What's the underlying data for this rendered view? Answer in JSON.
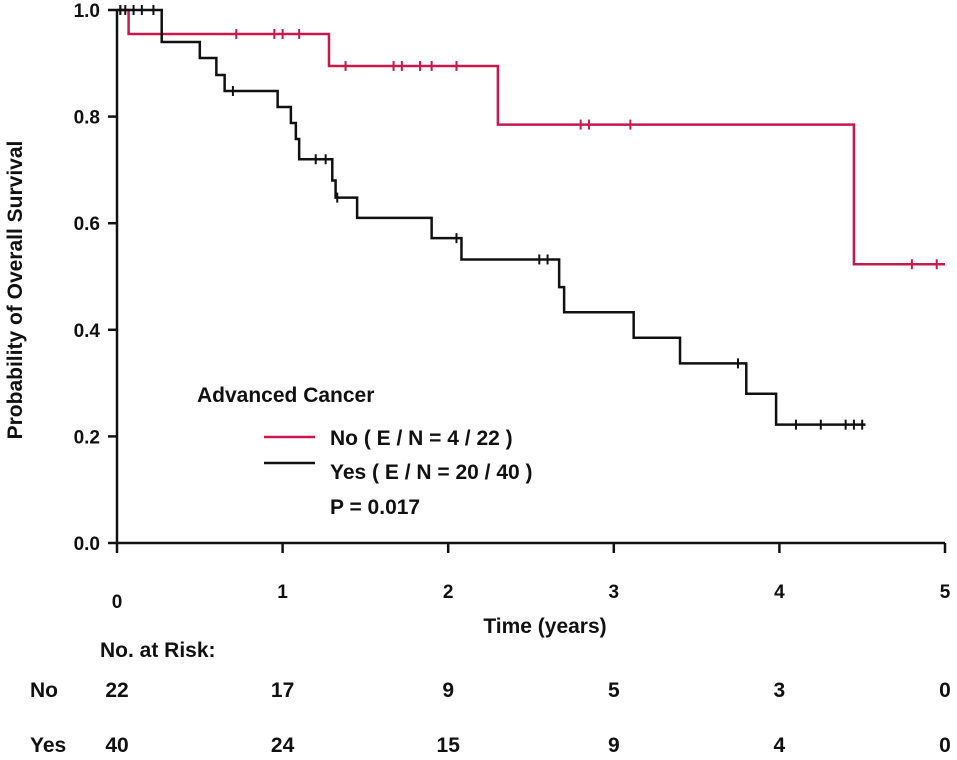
{
  "chart_data": {
    "type": "line",
    "subtype": "kaplan-meier",
    "xlabel": "Time (years)",
    "ylabel": "Probability of Overall Survival",
    "xlim": [
      0,
      5
    ],
    "ylim": [
      0,
      1.0
    ],
    "x_ticks": [
      "0",
      "1",
      "2",
      "3",
      "4",
      "5"
    ],
    "y_ticks": [
      "0.0",
      "0.2",
      "0.4",
      "0.6",
      "0.8",
      "1.0"
    ],
    "legend": {
      "title": "Advanced Cancer",
      "placement": "center-left",
      "p_value": "P = 0.017"
    },
    "series": [
      {
        "name": "No",
        "label": "No ( E / N = 4 / 22 )",
        "color": "#c8194f",
        "steps": [
          [
            0,
            1.0
          ],
          [
            0.07,
            0.955
          ],
          [
            1.28,
            0.895
          ],
          [
            2.3,
            0.785
          ],
          [
            4.45,
            0.523
          ],
          [
            5.0,
            0.523
          ]
        ],
        "censors": [
          [
            0.02,
            1.0
          ],
          [
            0.72,
            0.955
          ],
          [
            0.95,
            0.955
          ],
          [
            1.0,
            0.955
          ],
          [
            1.1,
            0.955
          ],
          [
            1.38,
            0.895
          ],
          [
            1.67,
            0.895
          ],
          [
            1.72,
            0.895
          ],
          [
            1.83,
            0.895
          ],
          [
            1.9,
            0.895
          ],
          [
            2.05,
            0.895
          ],
          [
            2.8,
            0.785
          ],
          [
            2.85,
            0.785
          ],
          [
            3.1,
            0.785
          ],
          [
            4.8,
            0.523
          ],
          [
            4.95,
            0.523
          ]
        ]
      },
      {
        "name": "Yes",
        "label": "Yes ( E / N = 20 / 40 )",
        "color": "#111111",
        "steps": [
          [
            0,
            1.0
          ],
          [
            0.27,
            0.94
          ],
          [
            0.5,
            0.91
          ],
          [
            0.6,
            0.878
          ],
          [
            0.65,
            0.848
          ],
          [
            0.97,
            0.818
          ],
          [
            1.05,
            0.788
          ],
          [
            1.08,
            0.758
          ],
          [
            1.1,
            0.72
          ],
          [
            1.3,
            0.68
          ],
          [
            1.32,
            0.648
          ],
          [
            1.45,
            0.61
          ],
          [
            1.9,
            0.572
          ],
          [
            2.08,
            0.532
          ],
          [
            2.67,
            0.48
          ],
          [
            2.7,
            0.433
          ],
          [
            3.12,
            0.385
          ],
          [
            3.4,
            0.337
          ],
          [
            3.8,
            0.28
          ],
          [
            3.98,
            0.222
          ],
          [
            4.52,
            0.222
          ]
        ],
        "censors": [
          [
            0.02,
            1.0
          ],
          [
            0.05,
            1.0
          ],
          [
            0.1,
            1.0
          ],
          [
            0.15,
            1.0
          ],
          [
            0.22,
            1.0
          ],
          [
            0.7,
            0.848
          ],
          [
            1.2,
            0.72
          ],
          [
            1.26,
            0.72
          ],
          [
            1.33,
            0.648
          ],
          [
            2.05,
            0.572
          ],
          [
            2.55,
            0.532
          ],
          [
            2.6,
            0.532
          ],
          [
            3.75,
            0.337
          ],
          [
            4.1,
            0.222
          ],
          [
            4.25,
            0.222
          ],
          [
            4.4,
            0.222
          ],
          [
            4.45,
            0.222
          ],
          [
            4.5,
            0.222
          ]
        ]
      }
    ],
    "risk_table": {
      "title": "No. at Risk:",
      "rows": [
        {
          "label": "No",
          "values": [
            "22",
            "17",
            "9",
            "5",
            "3",
            "0"
          ]
        },
        {
          "label": "Yes",
          "values": [
            "40",
            "24",
            "15",
            "9",
            "4",
            "0"
          ]
        }
      ]
    }
  }
}
